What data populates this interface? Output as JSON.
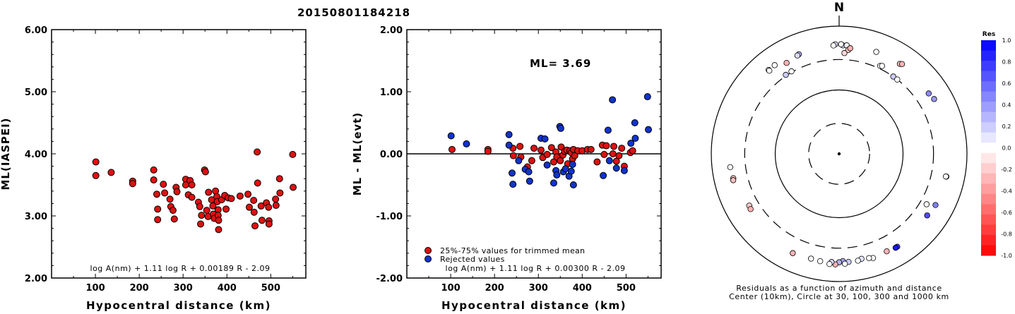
{
  "event_title": "20150801184218",
  "chart_data": [
    {
      "type": "scatter",
      "id": "ml-vs-distance",
      "xlabel": "Hypocentral distance (km)",
      "ylabel": "ML(IASPEI)",
      "xlim": [
        0,
        580
      ],
      "ylim": [
        2.0,
        6.0
      ],
      "xticks": [
        "100",
        "200",
        "300",
        "400",
        "500"
      ],
      "yticks": [
        "2.00",
        "3.00",
        "4.00",
        "5.00",
        "6.00"
      ],
      "formula": "log A(nm) + 1.11 log R + 0.00189 R - 2.09",
      "marker_color": "#dd1111",
      "points": [
        [
          101,
          3.87
        ],
        [
          101,
          3.65
        ],
        [
          136,
          3.7
        ],
        [
          185,
          3.56
        ],
        [
          185,
          3.52
        ],
        [
          233,
          3.74
        ],
        [
          233,
          3.58
        ],
        [
          240,
          3.35
        ],
        [
          242,
          3.11
        ],
        [
          242,
          2.94
        ],
        [
          255,
          3.51
        ],
        [
          258,
          3.37
        ],
        [
          270,
          3.27
        ],
        [
          272,
          3.15
        ],
        [
          277,
          3.09
        ],
        [
          280,
          2.95
        ],
        [
          284,
          3.46
        ],
        [
          286,
          3.39
        ],
        [
          306,
          3.59
        ],
        [
          306,
          3.5
        ],
        [
          312,
          3.34
        ],
        [
          316,
          3.57
        ],
        [
          320,
          3.5
        ],
        [
          320,
          3.3
        ],
        [
          335,
          3.22
        ],
        [
          338,
          3.15
        ],
        [
          342,
          3.01
        ],
        [
          340,
          2.87
        ],
        [
          349,
          3.74
        ],
        [
          351,
          3.71
        ],
        [
          354,
          3.09
        ],
        [
          357,
          2.99
        ],
        [
          358,
          3.38
        ],
        [
          365,
          3.26
        ],
        [
          368,
          3.16
        ],
        [
          369,
          3.03
        ],
        [
          371,
          2.96
        ],
        [
          374,
          3.4
        ],
        [
          377,
          3.31
        ],
        [
          378,
          3.23
        ],
        [
          380,
          3.1
        ],
        [
          380,
          3.01
        ],
        [
          381,
          2.93
        ],
        [
          381,
          2.78
        ],
        [
          388,
          3.26
        ],
        [
          395,
          3.33
        ],
        [
          398,
          3.11
        ],
        [
          403,
          3.29
        ],
        [
          410,
          3.28
        ],
        [
          430,
          3.32
        ],
        [
          448,
          3.35
        ],
        [
          451,
          3.14
        ],
        [
          461,
          3.25
        ],
        [
          462,
          3.06
        ],
        [
          464,
          2.84
        ],
        [
          469,
          4.03
        ],
        [
          470,
          3.53
        ],
        [
          478,
          3.16
        ],
        [
          480,
          2.93
        ],
        [
          490,
          3.21
        ],
        [
          495,
          3.14
        ],
        [
          496,
          2.92
        ],
        [
          496,
          2.87
        ],
        [
          511,
          3.27
        ],
        [
          512,
          3.17
        ],
        [
          520,
          3.6
        ],
        [
          521,
          3.37
        ],
        [
          550,
          3.99
        ],
        [
          551,
          3.46
        ]
      ]
    },
    {
      "type": "scatter",
      "id": "residual-vs-distance",
      "xlabel": "Hypocentral distance (km)",
      "ylabel": "ML - ML(evt)",
      "xlim": [
        0,
        580
      ],
      "ylim": [
        -2.0,
        2.0
      ],
      "xticks": [
        "100",
        "200",
        "300",
        "400",
        "500"
      ],
      "yticks": [
        "-2.00",
        "-1.00",
        "0.00",
        "1.00",
        "2.00"
      ],
      "annotation": "ML= 3.69",
      "formula": "log A(nm) + 1.11 log R + 0.00300 R - 2.09",
      "legend": {
        "placement": "bottom-left",
        "items": [
          {
            "label": "25%-75% values for trimmed mean",
            "color": "#dd1111"
          },
          {
            "label": "Rejected values",
            "color": "#1133cc"
          }
        ]
      },
      "series": [
        {
          "name": "25%-75% values for trimmed mean",
          "color": "#dd1111",
          "points": [
            [
              103,
              0.07
            ],
            [
              185,
              0.07
            ],
            [
              185,
              0.04
            ],
            [
              242,
              0.09
            ],
            [
              243,
              -0.03
            ],
            [
              258,
              0.12
            ],
            [
              260,
              -0.05
            ],
            [
              275,
              -0.21
            ],
            [
              285,
              -0.11
            ],
            [
              290,
              0.09
            ],
            [
              306,
              0.06
            ],
            [
              310,
              -0.06
            ],
            [
              320,
              -0.01
            ],
            [
              330,
              0.1
            ],
            [
              335,
              -0.13
            ],
            [
              340,
              0.03
            ],
            [
              342,
              -0.05
            ],
            [
              350,
              -0.11
            ],
            [
              352,
              0.11
            ],
            [
              356,
              -0.02
            ],
            [
              360,
              0.04
            ],
            [
              365,
              0.06
            ],
            [
              367,
              -0.16
            ],
            [
              372,
              0.05
            ],
            [
              375,
              0.02
            ],
            [
              378,
              -0.08
            ],
            [
              380,
              0.07
            ],
            [
              383,
              -0.03
            ],
            [
              390,
              0.05
            ],
            [
              400,
              0.05
            ],
            [
              412,
              0.07
            ],
            [
              420,
              0.07
            ],
            [
              434,
              -0.13
            ],
            [
              446,
              0.14
            ],
            [
              450,
              -0.01
            ],
            [
              455,
              0.13
            ],
            [
              470,
              0.0
            ],
            [
              472,
              0.12
            ],
            [
              478,
              -0.12
            ],
            [
              484,
              -0.03
            ],
            [
              490,
              0.09
            ],
            [
              496,
              -0.2
            ],
            [
              510,
              0.02
            ],
            [
              515,
              0.05
            ]
          ]
        },
        {
          "name": "Rejected values",
          "color": "#1133cc",
          "points": [
            [
              101,
              0.29
            ],
            [
              136,
              0.16
            ],
            [
              233,
              0.31
            ],
            [
              233,
              0.14
            ],
            [
              240,
              -0.31
            ],
            [
              242,
              -0.49
            ],
            [
              255,
              -0.11
            ],
            [
              270,
              -0.25
            ],
            [
              278,
              -0.29
            ],
            [
              280,
              -0.44
            ],
            [
              306,
              0.25
            ],
            [
              315,
              0.24
            ],
            [
              320,
              -0.18
            ],
            [
              335,
              -0.47
            ],
            [
              340,
              -0.27
            ],
            [
              342,
              -0.34
            ],
            [
              349,
              0.44
            ],
            [
              351,
              0.41
            ],
            [
              357,
              -0.29
            ],
            [
              362,
              -0.24
            ],
            [
              370,
              -0.36
            ],
            [
              375,
              -0.28
            ],
            [
              378,
              -0.17
            ],
            [
              380,
              -0.5
            ],
            [
              448,
              -0.35
            ],
            [
              459,
              0.38
            ],
            [
              462,
              -0.11
            ],
            [
              469,
              0.87
            ],
            [
              478,
              -0.23
            ],
            [
              496,
              -0.27
            ],
            [
              511,
              0.17
            ],
            [
              520,
              0.5
            ],
            [
              521,
              0.25
            ],
            [
              549,
              0.92
            ],
            [
              551,
              0.39
            ]
          ]
        }
      ]
    },
    {
      "type": "polar-scatter",
      "id": "residual-azimuth-distance",
      "north_label": "N",
      "caption_line1": "Residuals as a function of azimuth and distance",
      "caption_line2": "Center (10km), Circle at 30, 100, 300 and 1000 km",
      "rings": [
        {
          "distance_km": 30,
          "style": "dashed"
        },
        {
          "distance_km": 100,
          "style": "solid"
        },
        {
          "distance_km": 300,
          "style": "dashed"
        },
        {
          "distance_km": 1000,
          "style": "solid"
        }
      ],
      "colorbar": {
        "title": "Res",
        "ticks": [
          "1.0",
          "0.8",
          "0.6",
          "0.4",
          "0.2",
          "0.0",
          "-0.2",
          "-0.4",
          "-0.6",
          "-0.8",
          "-1.0"
        ],
        "positive_color": "#0000ff",
        "negative_color": "#ff0000"
      },
      "points": [
        {
          "az": 2,
          "dist": 500,
          "res": 0.1
        },
        {
          "az": 1,
          "dist": 520,
          "res": 0.0
        },
        {
          "az": 358,
          "dist": 520,
          "res": 0.15
        },
        {
          "az": 357,
          "dist": 500,
          "res": 0.0
        },
        {
          "az": 4,
          "dist": 505,
          "res": 0.05
        },
        {
          "az": 5,
          "dist": 430,
          "res": -0.2
        },
        {
          "az": 3,
          "dist": 380,
          "res": -0.15
        },
        {
          "az": 6,
          "dist": 460,
          "res": -0.3
        },
        {
          "az": 20,
          "dist": 500,
          "res": 0.0
        },
        {
          "az": 34,
          "dist": 500,
          "res": -0.25
        },
        {
          "az": 35,
          "dist": 520,
          "res": -0.3
        },
        {
          "az": 25,
          "dist": 330,
          "res": 0.0
        },
        {
          "az": 26,
          "dist": 340,
          "res": 0.0
        },
        {
          "az": 56,
          "dist": 490,
          "res": 0.45
        },
        {
          "az": 60,
          "dist": 520,
          "res": 0.4
        },
        {
          "az": 35,
          "dist": 300,
          "res": 0.2
        },
        {
          "az": 38,
          "dist": 300,
          "res": 0.0
        },
        {
          "az": 324,
          "dist": 520,
          "res": 0.0
        },
        {
          "az": 320,
          "dist": 520,
          "res": 0.0
        },
        {
          "az": 320,
          "dist": 500,
          "res": 0.0
        },
        {
          "az": 330,
          "dist": 440,
          "res": -0.3
        },
        {
          "az": 338,
          "dist": 480,
          "res": 0.3
        },
        {
          "az": 337,
          "dist": 470,
          "res": 0.15
        },
        {
          "az": 330,
          "dist": 310,
          "res": 0.0
        },
        {
          "az": 326,
          "dist": 310,
          "res": 0.2
        },
        {
          "az": 257,
          "dist": 500,
          "res": -0.2
        },
        {
          "az": 256,
          "dist": 510,
          "res": -0.25
        },
        {
          "az": 263,
          "dist": 520,
          "res": 0.0
        },
        {
          "az": 240,
          "dist": 420,
          "res": -0.2
        },
        {
          "az": 238,
          "dist": 430,
          "res": -0.3
        },
        {
          "az": 102,
          "dist": 520,
          "res": 0.0
        },
        {
          "az": 102,
          "dist": 510,
          "res": 0.0
        },
        {
          "az": 120,
          "dist": 380,
          "res": 0.0
        },
        {
          "az": 125,
          "dist": 480,
          "res": 0.7
        },
        {
          "az": 118,
          "dist": 510,
          "res": 0.5
        },
        {
          "az": 148,
          "dist": 520,
          "res": 0.8
        },
        {
          "az": 149,
          "dist": 520,
          "res": 0.9
        },
        {
          "az": 154,
          "dist": 500,
          "res": -0.3
        },
        {
          "az": 162,
          "dist": 520,
          "res": 0.0
        },
        {
          "az": 164,
          "dist": 500,
          "res": 0.0
        },
        {
          "az": 168,
          "dist": 480,
          "res": 0.1
        },
        {
          "az": 170,
          "dist": 500,
          "res": 0.0
        },
        {
          "az": 175,
          "dist": 500,
          "res": 0.2
        },
        {
          "az": 178,
          "dist": 480,
          "res": 0.35
        },
        {
          "az": 180,
          "dist": 500,
          "res": 0.3
        },
        {
          "az": 182,
          "dist": 540,
          "res": -0.3
        },
        {
          "az": 184,
          "dist": 500,
          "res": 0.15
        },
        {
          "az": 185,
          "dist": 540,
          "res": 0.0
        },
        {
          "az": 190,
          "dist": 510,
          "res": 0.0
        },
        {
          "az": 195,
          "dist": 500,
          "res": 0.0
        },
        {
          "az": 205,
          "dist": 520,
          "res": -0.3
        },
        {
          "az": 177,
          "dist": 530,
          "res": 0.0
        }
      ]
    }
  ]
}
